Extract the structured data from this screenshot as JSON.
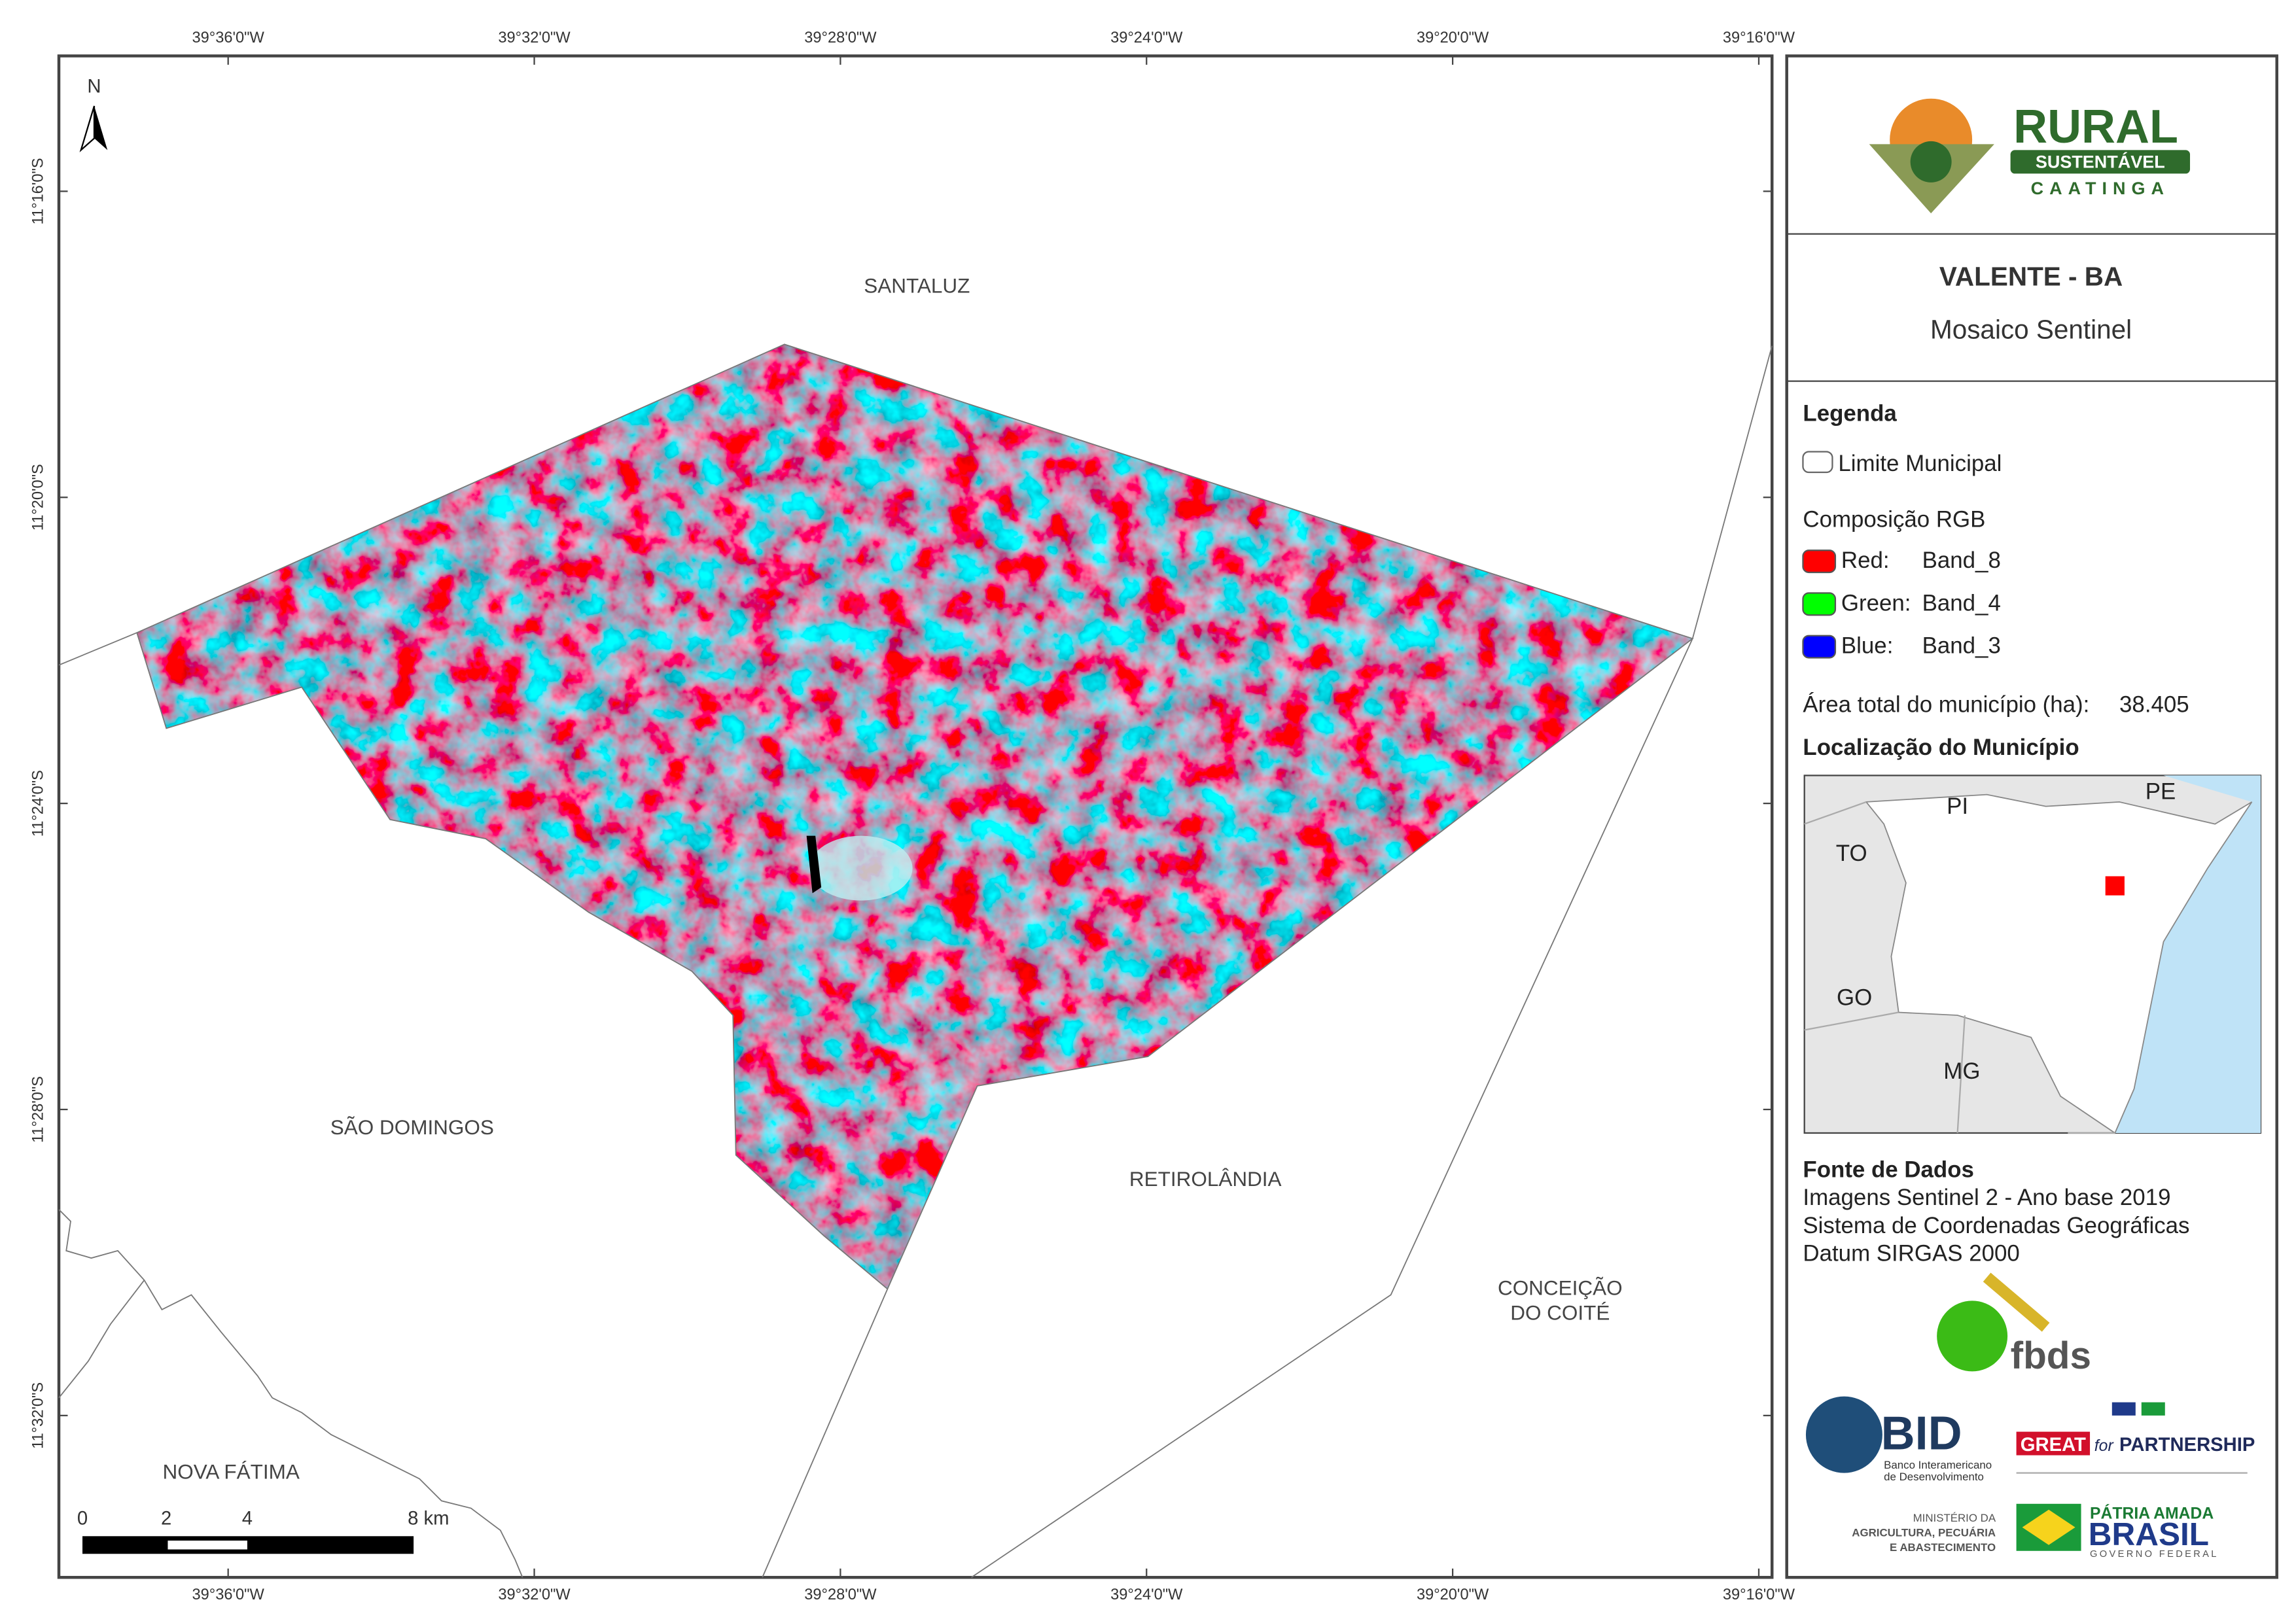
{
  "map": {
    "top_ticks": [
      "39°36'0\"W",
      "39°32'0\"W",
      "39°28'0\"W",
      "39°24'0\"W",
      "39°20'0\"W",
      "39°16'0\"W"
    ],
    "bottom_ticks": [
      "39°36'0\"W",
      "39°32'0\"W",
      "39°28'0\"W",
      "39°24'0\"W",
      "39°20'0\"W",
      "39°16'0\"W"
    ],
    "left_ticks": [
      "11°16'0\"S",
      "11°20'0\"S",
      "11°24'0\"S",
      "11°28'0\"S",
      "11°32'0\"S"
    ],
    "north": "N",
    "places": [
      "SANTALUZ",
      "SÃO DOMINGOS",
      "RETIROLÂNDIA",
      "CONCEIÇÃO",
      "DO COITÉ",
      "NOVA FÁTIMA"
    ],
    "scale_labels": [
      "0",
      "2",
      "4",
      "8 km"
    ]
  },
  "panel": {
    "logo": [
      "RURAL",
      "SUSTENTÁVEL",
      "CAATINGA"
    ],
    "title": "VALENTE - BA",
    "subtitle": "Mosaico Sentinel",
    "legend": {
      "title": "Legenda",
      "boundary": "Limite Municipal",
      "composition": "Composição RGB",
      "bands": [
        {
          "channel": "Red:",
          "band": "Band_8",
          "color": "#ff0000"
        },
        {
          "channel": "Green:",
          "band": "Band_4",
          "color": "#00ff00"
        },
        {
          "channel": "Blue:",
          "band": "Band_3",
          "color": "#0000ff"
        }
      ]
    },
    "area": {
      "label": "Área total do município (ha):",
      "value": "38.405"
    },
    "location": {
      "title": "Localização do Município",
      "states": [
        "PI",
        "PE",
        "TO",
        "GO",
        "MG"
      ]
    },
    "sources": {
      "title": "Fonte de Dados",
      "lines": [
        "Imagens Sentinel 2 - Ano base 2019",
        "Sistema de Coordenadas Geográficas",
        "Datum SIRGAS 2000"
      ]
    },
    "partners": {
      "fbds": "fbds",
      "bid": "BID",
      "bid_name": [
        "Banco Interamericano",
        "de Desenvolvimento"
      ],
      "great": [
        "GREAT",
        "for",
        "PARTNERSHIP"
      ],
      "ministry": [
        "MINISTÉRIO DA",
        "AGRICULTURA, PECUÁRIA",
        "E ABASTECIMENTO"
      ],
      "brasil": [
        "PÁTRIA AMADA",
        "BRASIL",
        "GOVERNO FEDERAL"
      ]
    }
  }
}
